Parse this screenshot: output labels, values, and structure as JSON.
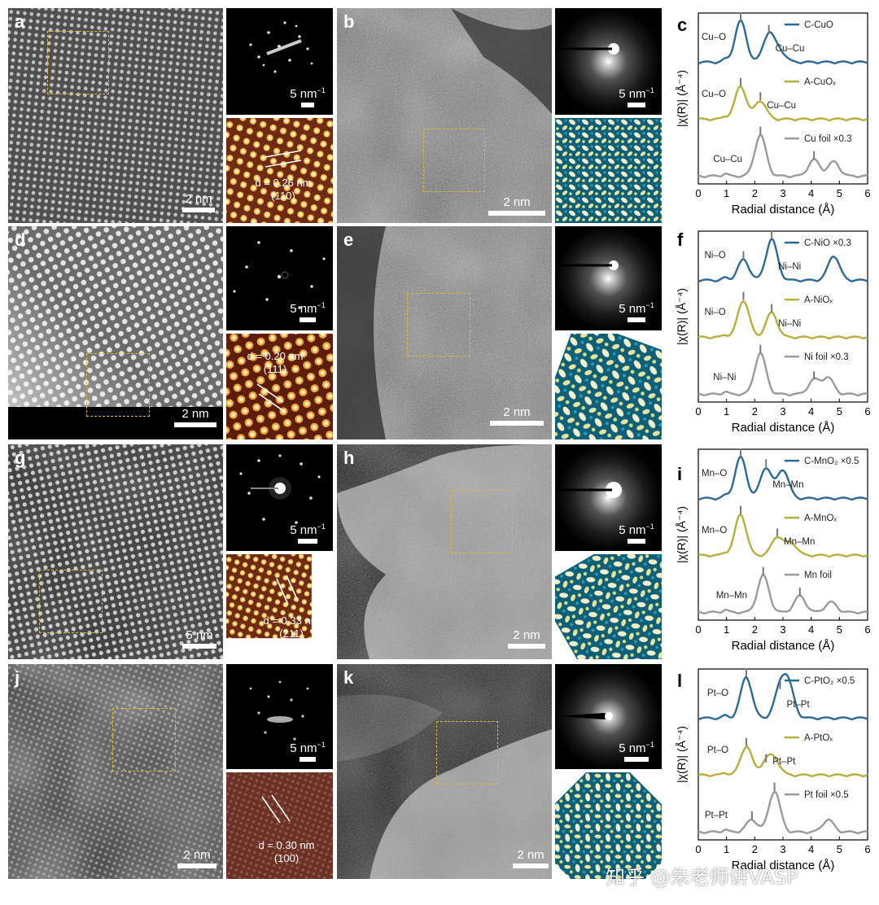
{
  "rows": [
    {
      "stem": {
        "label": "a",
        "scale": "2 nm"
      },
      "fft": {
        "scale": "5 nm",
        "sup": "−1"
      },
      "filtered": {
        "d_label": "d = 0.26 nm",
        "hkl": "(110)"
      },
      "amorph": {
        "label": "b",
        "scale": "2 nm"
      },
      "afft": {
        "scale": "5 nm",
        "sup": "−1"
      },
      "exafs": {
        "label": "c",
        "xlabel": "Radial distance (Å)",
        "ylabel": "|χ(R)| (Å⁻⁴)",
        "xticks": [
          "0",
          "1",
          "2",
          "3",
          "4",
          "5",
          "6"
        ],
        "series": [
          {
            "name": "C-CuO",
            "color": "#2b6a96",
            "annotations": [
              "Cu–O",
              "Cu–Cu"
            ]
          },
          {
            "name": "A-CuOₓ",
            "color": "#b8ae3a",
            "annotations": [
              "Cu–O",
              "Cu–Cu"
            ]
          },
          {
            "name": "Cu foil ×0.3",
            "color": "#9a9a9a",
            "annotations": [
              "Cu–Cu"
            ]
          }
        ]
      }
    },
    {
      "stem": {
        "label": "d",
        "scale": "2 nm"
      },
      "fft": {
        "scale": "5 nm",
        "sup": "−1"
      },
      "filtered": {
        "d_label": "d = 0.20 nm",
        "hkl": "(111)"
      },
      "amorph": {
        "label": "e",
        "scale": "2 nm"
      },
      "afft": {
        "scale": "5 nm",
        "sup": "−1"
      },
      "exafs": {
        "label": "f",
        "xlabel": "Radial distance (Å)",
        "ylabel": "|χ(R)| (Å⁻⁴)",
        "xticks": [
          "0",
          "1",
          "2",
          "3",
          "4",
          "5",
          "6"
        ],
        "series": [
          {
            "name": "C-NiO ×0.3",
            "color": "#2b6a96",
            "annotations": [
              "Ni–O",
              "Ni–Ni"
            ]
          },
          {
            "name": "A-NiOₓ",
            "color": "#b8ae3a",
            "annotations": [
              "Ni–O",
              "Ni–Ni"
            ]
          },
          {
            "name": "Ni foil ×0.3",
            "color": "#9a9a9a",
            "annotations": [
              "Ni–Ni"
            ]
          }
        ]
      }
    },
    {
      "stem": {
        "label": "g",
        "scale": "5 nm"
      },
      "fft": {
        "scale": "5 nm",
        "sup": "−1"
      },
      "filtered": {
        "d_label": "d = 0.33 nm",
        "hkl": "(211)"
      },
      "amorph": {
        "label": "h",
        "scale": "2 nm"
      },
      "afft": {
        "scale": "5 nm",
        "sup": "−1"
      },
      "exafs": {
        "label": "i",
        "xlabel": "Radial distance (Å)",
        "ylabel": "|χ(R)| (Å⁻⁴)",
        "xticks": [
          "0",
          "1",
          "2",
          "3",
          "4",
          "5",
          "6"
        ],
        "series": [
          {
            "name": "C-MnO₂ ×0.5",
            "color": "#2b6a96",
            "annotations": [
              "Mn–O",
              "Mn–Mn"
            ]
          },
          {
            "name": "A-MnOₓ",
            "color": "#b8ae3a",
            "annotations": [
              "Mn–O",
              "Mn–Mn"
            ]
          },
          {
            "name": "Mn foil",
            "color": "#9a9a9a",
            "annotations": [
              "Mn–Mn"
            ]
          }
        ]
      }
    },
    {
      "stem": {
        "label": "j",
        "scale": "2 nm"
      },
      "fft": {
        "scale": "5 nm",
        "sup": "−1"
      },
      "filtered": {
        "d_label": "d = 0.30 nm",
        "hkl": "(100)"
      },
      "amorph": {
        "label": "k",
        "scale": "2 nm"
      },
      "afft": {
        "scale": "5 nm",
        "sup": "−1"
      },
      "exafs": {
        "label": "l",
        "xlabel": "Radial distance (Å)",
        "ylabel": "|χ(R)| (Å⁻⁴)",
        "xticks": [
          "0",
          "1",
          "2",
          "3",
          "4",
          "5",
          "6"
        ],
        "series": [
          {
            "name": "C-PtO₂ ×0.5",
            "color": "#2b6a96",
            "annotations": [
              "Pt–O",
              "Pt–Pt"
            ]
          },
          {
            "name": "A-PtOₓ",
            "color": "#b8ae3a",
            "annotations": [
              "Pt–O",
              "Pt–Pt"
            ]
          },
          {
            "name": "Pt foil ×0.5",
            "color": "#9a9a9a",
            "annotations": [
              "Pt–Pt"
            ]
          }
        ]
      }
    }
  ],
  "watermark": "知乎 @朱老师讲VASP",
  "chart_data": [
    {
      "type": "line",
      "label": "c",
      "xlabel": "Radial distance (Å)",
      "ylabel": "|χ(R)| (Å⁻⁴)",
      "xlim": [
        0,
        6
      ],
      "series": [
        {
          "name": "C-CuO",
          "peaks": [
            [
              1.5,
              1.0
            ],
            [
              2.5,
              0.7
            ],
            [
              2.9,
              0.25
            ]
          ]
        },
        {
          "name": "A-CuOₓ",
          "peaks": [
            [
              1.5,
              0.8
            ],
            [
              2.2,
              0.45
            ]
          ]
        },
        {
          "name": "Cu foil ×0.3",
          "peaks": [
            [
              2.2,
              1.0
            ],
            [
              4.1,
              0.4
            ],
            [
              4.8,
              0.35
            ]
          ]
        }
      ]
    },
    {
      "type": "line",
      "label": "f",
      "xlabel": "Radial distance (Å)",
      "ylabel": "|χ(R)| (Å⁻⁴)",
      "xlim": [
        0,
        6
      ],
      "series": [
        {
          "name": "C-NiO ×0.3",
          "peaks": [
            [
              1.6,
              0.5
            ],
            [
              2.6,
              1.0
            ],
            [
              4.8,
              0.6
            ]
          ]
        },
        {
          "name": "A-NiOₓ",
          "peaks": [
            [
              1.6,
              0.9
            ],
            [
              2.6,
              0.6
            ]
          ]
        },
        {
          "name": "Ni foil ×0.3",
          "peaks": [
            [
              2.2,
              1.0
            ],
            [
              4.1,
              0.35
            ],
            [
              4.6,
              0.4
            ]
          ]
        }
      ]
    },
    {
      "type": "line",
      "label": "i",
      "xlabel": "Radial distance (Å)",
      "ylabel": "|χ(R)| (Å⁻⁴)",
      "xlim": [
        0,
        6
      ],
      "series": [
        {
          "name": "C-MnO₂ ×0.5",
          "peaks": [
            [
              1.5,
              1.0
            ],
            [
              2.4,
              0.75
            ],
            [
              3.0,
              0.7
            ]
          ]
        },
        {
          "name": "A-MnOₓ",
          "peaks": [
            [
              1.5,
              1.0
            ],
            [
              2.8,
              0.45
            ],
            [
              3.3,
              0.3
            ]
          ]
        },
        {
          "name": "Mn foil",
          "peaks": [
            [
              2.3,
              0.9
            ],
            [
              3.6,
              0.4
            ],
            [
              4.7,
              0.25
            ]
          ]
        }
      ]
    },
    {
      "type": "line",
      "label": "l",
      "xlabel": "Radial distance (Å)",
      "ylabel": "|χ(R)| (Å⁻⁴)",
      "xlim": [
        0,
        6
      ],
      "series": [
        {
          "name": "C-PtO₂ ×0.5",
          "peaks": [
            [
              1.7,
              1.0
            ],
            [
              2.9,
              0.7
            ],
            [
              3.2,
              0.75
            ]
          ]
        },
        {
          "name": "A-PtOₓ",
          "peaks": [
            [
              1.7,
              0.7
            ],
            [
              2.4,
              0.3
            ],
            [
              2.7,
              0.35
            ]
          ]
        },
        {
          "name": "Pt foil ×0.5",
          "peaks": [
            [
              1.9,
              0.3
            ],
            [
              2.7,
              1.0
            ],
            [
              4.6,
              0.3
            ]
          ]
        }
      ]
    }
  ]
}
